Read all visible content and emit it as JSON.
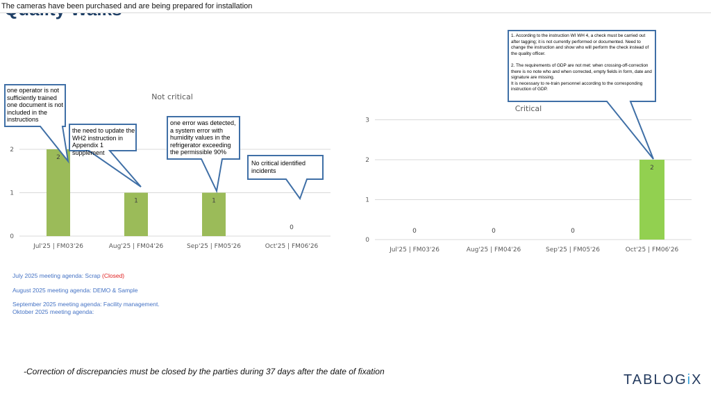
{
  "banner": {
    "text": "The cameras have been purchased and are being prepared for installation"
  },
  "page": {
    "title": "Quality Walks"
  },
  "colors": {
    "left_bar": "#9bbb59",
    "right_bar": "#92d050",
    "callout_border": "#3f6fa6"
  },
  "chart_data": [
    {
      "type": "bar",
      "title": "Not critical",
      "categories": [
        "Jul'25 | FM03'26",
        "Aug'25 | FM04'26",
        "Sep'25 | FM05'26",
        "Oct'25 | FM06'26"
      ],
      "values": [
        2,
        1,
        1,
        0
      ],
      "data_labels": [
        "2",
        "1",
        "1",
        "0"
      ],
      "yticks": [
        "0",
        "1",
        "2"
      ],
      "ylim": [
        0,
        3
      ],
      "grid": true,
      "legend": "none"
    },
    {
      "type": "bar",
      "title": "Critical",
      "categories": [
        "Jul'25 | FM03'26",
        "Aug'25 | FM04'26",
        "Sep'25 | FM05'26",
        "Oct'25 | FM06'26"
      ],
      "values": [
        0,
        0,
        0,
        2
      ],
      "data_labels": [
        "0",
        "0",
        "0",
        "2"
      ],
      "yticks": [
        "0",
        "1",
        "2",
        "3"
      ],
      "ylim": [
        0,
        3
      ],
      "grid": true,
      "legend": "none"
    }
  ],
  "callouts": [
    {
      "text": "one operator is not sufficiently trained one document is not included in the instructions"
    },
    {
      "text": "the need to update the WH2 instruction in Appendix 1 supplement"
    },
    {
      "text": "one error was detected, a system error with humidity values in the refrigerator exceeding the permissible 90%"
    },
    {
      "text": "No critical identified incidents"
    },
    {
      "text": "1.  According to the instruction WI WH 4, a check must be carried out after tagging; it is not currently performed or documented. Need to change the instruction and show who will perform the check instead of the quality officer.\n\n2.          The requirements of GDP are not met: when crossing-off-correction there is no note who and when corrected, empty fields in form, date and signature are missing.\nIt is necessary to re-train personnel according to the corresponding instruction of GDP."
    }
  ],
  "agenda": {
    "july": "July 2025 meeting agenda: Scrap ",
    "july_status": "(Closed)",
    "august": "August 2025 meeting agenda: DEMO & Sample",
    "september": "September 2025 meeting agenda: Facility management.",
    "october": "Oktober 2025 meeting agenda:"
  },
  "footer": {
    "note": "-Correction of discrepancies must be closed by the parties during 37 days after the date of fixation"
  },
  "logo": {
    "text_a": "TABLOG",
    "text_b": "i",
    "text_c": "X"
  }
}
